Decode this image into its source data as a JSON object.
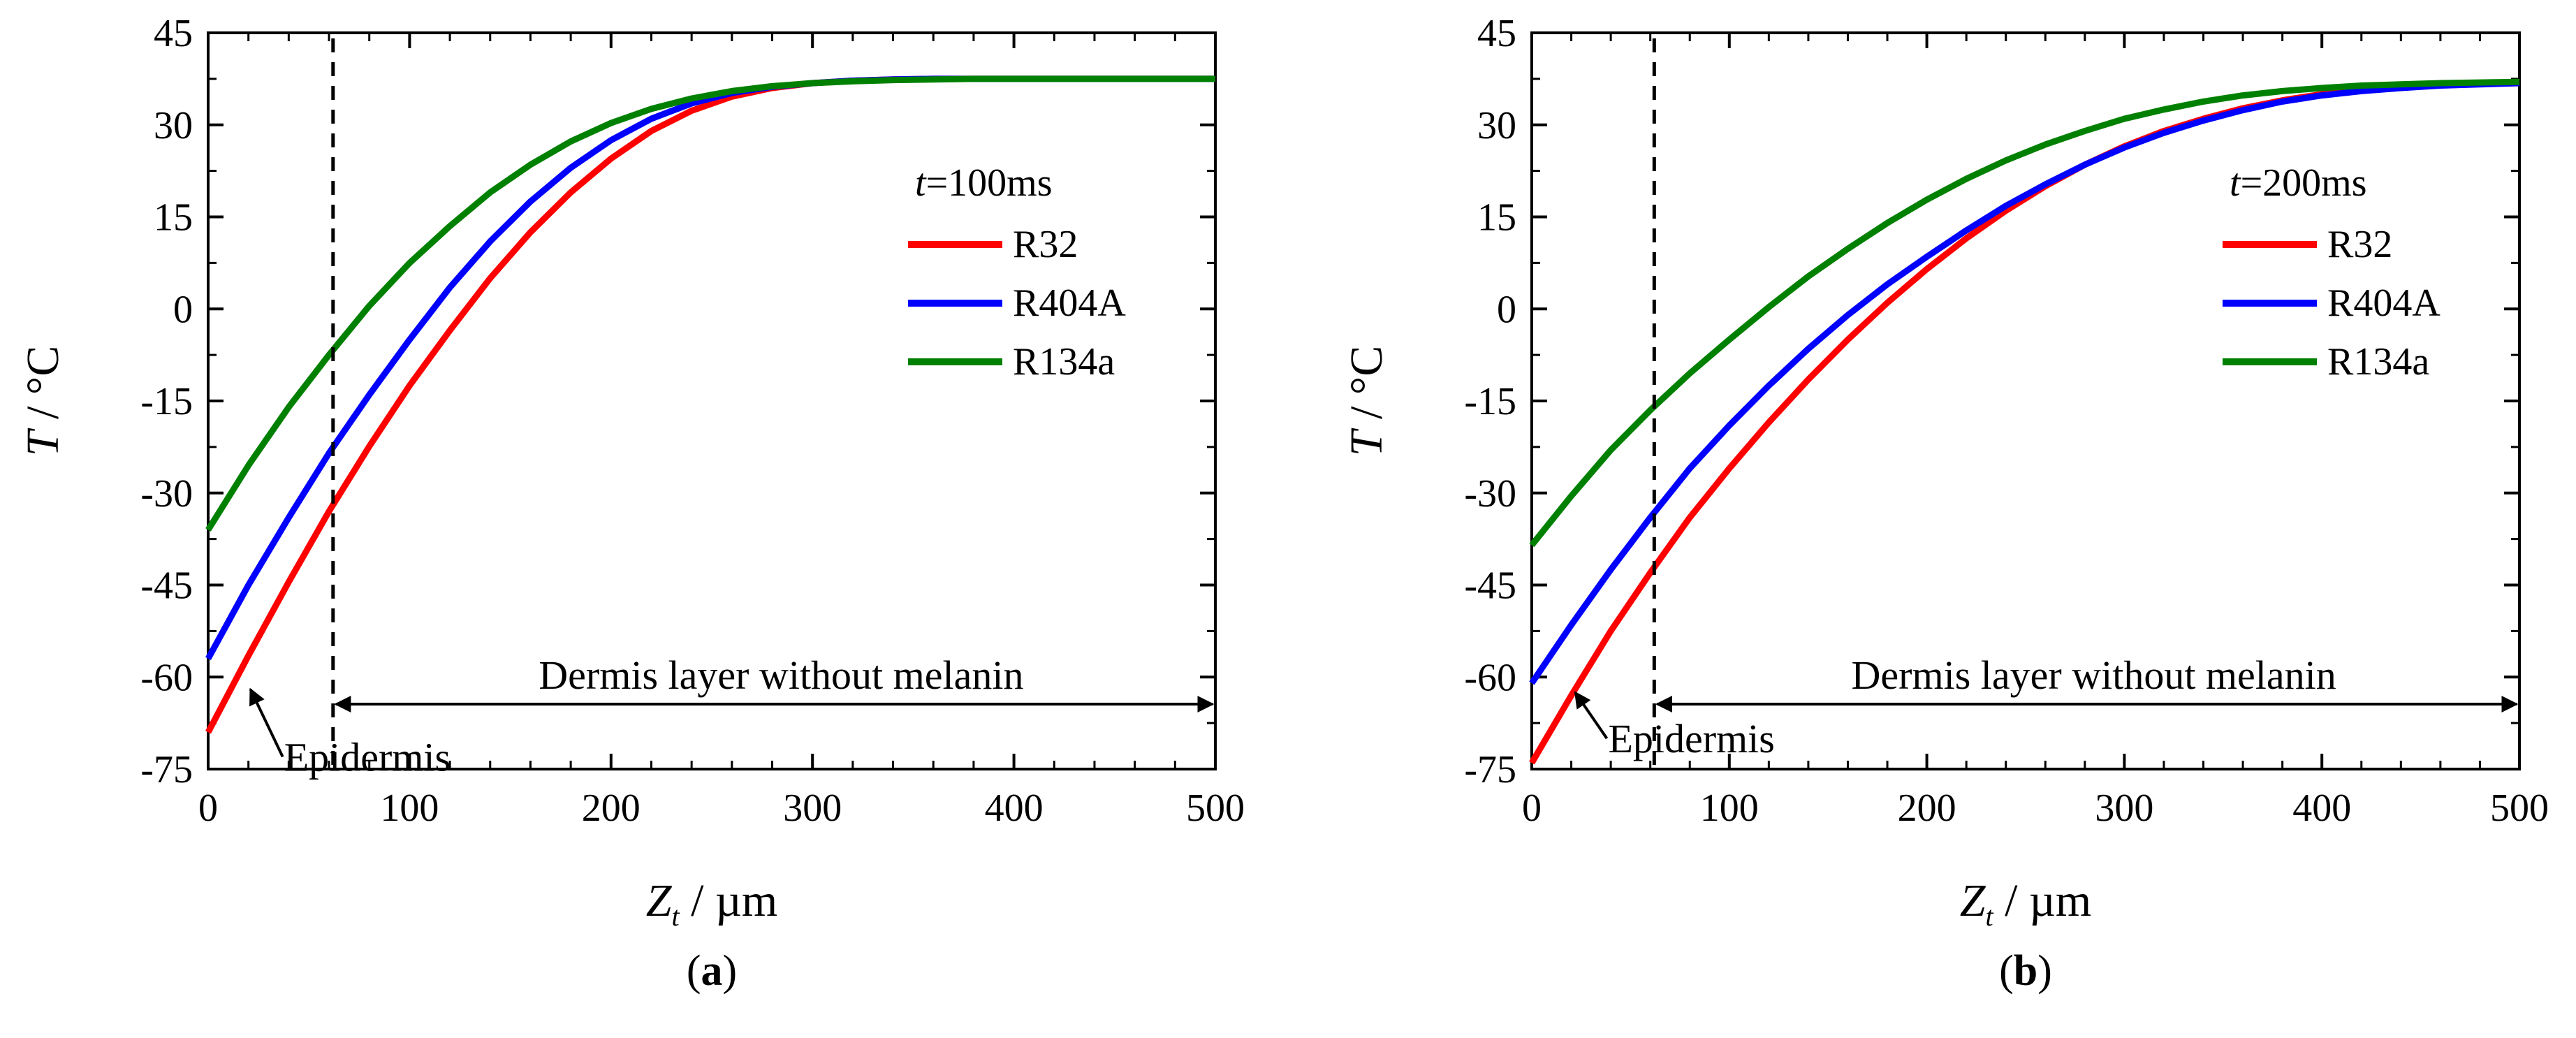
{
  "chart_data": [
    {
      "type": "line",
      "panel_label": "(a)",
      "panel_letter": "a",
      "ylabel": "T / °C",
      "ylabel_var": "T",
      "ylabel_unit": " / °C",
      "xlabel": "Zt / µm",
      "xlabel_var": "Z",
      "xlabel_sub": "t",
      "xlabel_unit": " / µm",
      "xlim": [
        0,
        500
      ],
      "ylim": [
        -75,
        45
      ],
      "xticks": [
        0,
        100,
        200,
        300,
        400,
        500
      ],
      "yticks": [
        -75,
        -60,
        -45,
        -30,
        -15,
        0,
        15,
        30,
        45
      ],
      "xtick_labels": [
        "0",
        "100",
        "200",
        "300",
        "400",
        "500"
      ],
      "ytick_labels": [
        "-75",
        "-60",
        "-45",
        "-30",
        "-15",
        "0",
        "15",
        "30",
        "45"
      ],
      "grid": false,
      "legend_position": "right",
      "legend_title_var": "t",
      "legend_title_rest": "=100ms",
      "series": [
        {
          "name": "R32",
          "color": "#ff0000",
          "x": [
            0,
            20,
            40,
            60,
            80,
            100,
            120,
            140,
            160,
            180,
            200,
            220,
            240,
            260,
            280,
            300,
            320,
            340,
            360,
            380,
            400,
            420,
            440,
            460,
            480,
            500
          ],
          "y": [
            -69,
            -56.5,
            -44.5,
            -33,
            -22.4,
            -12.5,
            -3.5,
            5,
            12.5,
            19,
            24.5,
            29,
            32.3,
            34.6,
            36,
            36.8,
            37.2,
            37.4,
            37.5,
            37.5,
            37.5,
            37.5,
            37.5,
            37.5,
            37.5,
            37.5
          ]
        },
        {
          "name": "R404A",
          "color": "#0000ff",
          "x": [
            0,
            20,
            40,
            60,
            80,
            100,
            120,
            140,
            160,
            180,
            200,
            220,
            240,
            260,
            280,
            300,
            320,
            340,
            360,
            380,
            400,
            420,
            440,
            460,
            480,
            500
          ],
          "y": [
            -57,
            -45,
            -34,
            -23.5,
            -14,
            -5,
            3.5,
            11,
            17.5,
            23,
            27.5,
            31,
            33.5,
            35.2,
            36.2,
            36.8,
            37.2,
            37.4,
            37.5,
            37.5,
            37.5,
            37.5,
            37.5,
            37.5,
            37.5,
            37.5
          ]
        },
        {
          "name": "R134a",
          "color": "#008000",
          "x": [
            0,
            20,
            40,
            60,
            80,
            100,
            120,
            140,
            160,
            180,
            200,
            220,
            240,
            260,
            280,
            300,
            320,
            340,
            360,
            380,
            400,
            420,
            440,
            460,
            480,
            500
          ],
          "y": [
            -36,
            -25.5,
            -16,
            -7.5,
            0.5,
            7.5,
            13.5,
            19,
            23.5,
            27.3,
            30.3,
            32.6,
            34.3,
            35.5,
            36.3,
            36.8,
            37.1,
            37.3,
            37.4,
            37.5,
            37.5,
            37.5,
            37.5,
            37.5,
            37.5,
            37.5
          ]
        }
      ],
      "annotations": {
        "dashed_line_x": 62,
        "dermis_text": "Dermis layer without melanin",
        "dermis_range": [
          62,
          500
        ],
        "dermis_y": -61,
        "epidermis_text": "Epidermis",
        "epidermis_arrow_from": [
          37,
          -73
        ],
        "epidermis_arrow_to": [
          21,
          -62
        ]
      }
    },
    {
      "type": "line",
      "panel_label": "(b)",
      "panel_letter": "b",
      "ylabel": "T / °C",
      "ylabel_var": "T",
      "ylabel_unit": " / °C",
      "xlabel": "Zt / µm",
      "xlabel_var": "Z",
      "xlabel_sub": "t",
      "xlabel_unit": " / µm",
      "xlim": [
        0,
        500
      ],
      "ylim": [
        -75,
        45
      ],
      "xticks": [
        0,
        100,
        200,
        300,
        400,
        500
      ],
      "yticks": [
        -75,
        -60,
        -45,
        -30,
        -15,
        0,
        15,
        30,
        45
      ],
      "xtick_labels": [
        "0",
        "100",
        "200",
        "300",
        "400",
        "500"
      ],
      "ytick_labels": [
        "-75",
        "-60",
        "-45",
        "-30",
        "-15",
        "0",
        "15",
        "30",
        "45"
      ],
      "grid": false,
      "legend_position": "right",
      "legend_title_var": "t",
      "legend_title_rest": "=200ms",
      "series": [
        {
          "name": "R32",
          "color": "#ff0000",
          "x": [
            0,
            20,
            40,
            60,
            80,
            100,
            120,
            140,
            160,
            180,
            200,
            220,
            240,
            260,
            280,
            300,
            320,
            340,
            360,
            380,
            400,
            420,
            440,
            460,
            480,
            500
          ],
          "y": [
            -74,
            -63,
            -52.5,
            -43,
            -34,
            -26,
            -18.5,
            -11.5,
            -5,
            1,
            6.5,
            11.5,
            16,
            20,
            23.5,
            26.5,
            29,
            31,
            32.7,
            34,
            35,
            35.7,
            36.2,
            36.5,
            36.7,
            36.8
          ]
        },
        {
          "name": "R404A",
          "color": "#0000ff",
          "x": [
            0,
            20,
            40,
            60,
            80,
            100,
            120,
            140,
            160,
            180,
            200,
            220,
            240,
            260,
            280,
            300,
            320,
            340,
            360,
            380,
            400,
            420,
            440,
            460,
            480,
            500
          ],
          "y": [
            -61,
            -51.5,
            -42.5,
            -34,
            -26,
            -19,
            -12.5,
            -6.5,
            -1,
            4,
            8.5,
            12.8,
            16.8,
            20.3,
            23.5,
            26.3,
            28.7,
            30.7,
            32.4,
            33.8,
            34.8,
            35.5,
            36,
            36.4,
            36.6,
            36.8
          ]
        },
        {
          "name": "R134a",
          "color": "#008000",
          "x": [
            0,
            20,
            40,
            60,
            80,
            100,
            120,
            140,
            160,
            180,
            200,
            220,
            240,
            260,
            280,
            300,
            320,
            340,
            360,
            380,
            400,
            420,
            440,
            460,
            480,
            500
          ],
          "y": [
            -38.5,
            -30.5,
            -23,
            -16.5,
            -10.5,
            -5,
            0.3,
            5.3,
            9.8,
            14,
            17.8,
            21.2,
            24.2,
            26.8,
            29,
            31,
            32.5,
            33.8,
            34.8,
            35.5,
            36,
            36.4,
            36.6,
            36.8,
            36.9,
            37
          ]
        }
      ],
      "annotations": {
        "dashed_line_x": 62,
        "dermis_text": "Dermis layer without melanin",
        "dermis_range": [
          62,
          500
        ],
        "dermis_y": -61,
        "epidermis_text": "Epidermis",
        "epidermis_arrow_from": [
          38,
          -70
        ],
        "epidermis_arrow_to": [
          22,
          -62.5
        ]
      }
    }
  ]
}
